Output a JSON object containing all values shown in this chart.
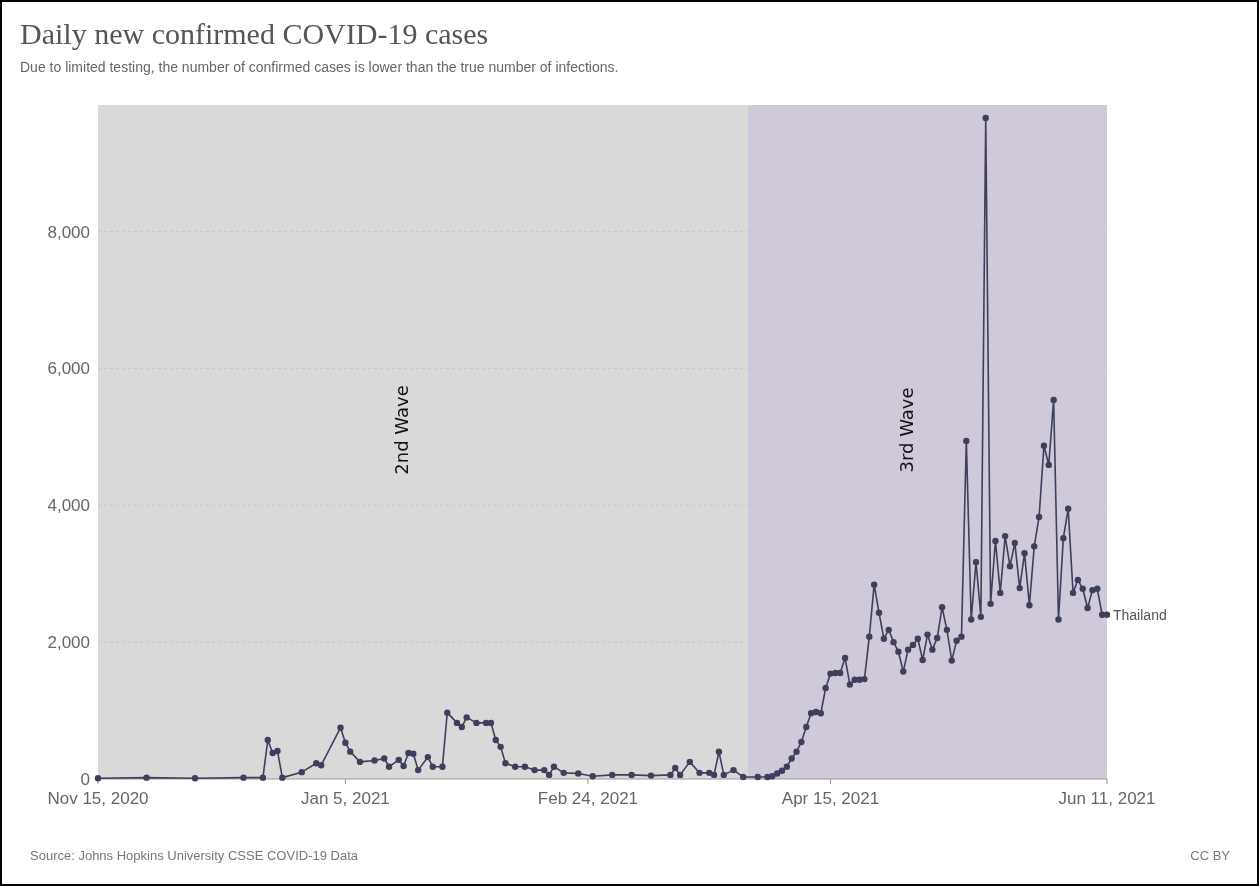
{
  "chart_data": {
    "type": "line",
    "title": "Daily new confirmed COVID-19 cases",
    "subtitle": "Due to limited testing, the number of confirmed cases is lower than the true number of infections.",
    "x": [
      "2020-11-15",
      "2020-11-25",
      "2020-12-05",
      "2020-12-15",
      "2020-12-19",
      "2020-12-20",
      "2020-12-21",
      "2020-12-22",
      "2020-12-23",
      "2020-12-27",
      "2020-12-30",
      "2020-12-31",
      "2021-01-04",
      "2021-01-05",
      "2021-01-06",
      "2021-01-08",
      "2021-01-11",
      "2021-01-13",
      "2021-01-14",
      "2021-01-16",
      "2021-01-17",
      "2021-01-18",
      "2021-01-19",
      "2021-01-20",
      "2021-01-22",
      "2021-01-23",
      "2021-01-25",
      "2021-01-26",
      "2021-01-28",
      "2021-01-29",
      "2021-01-30",
      "2021-02-01",
      "2021-02-03",
      "2021-02-04",
      "2021-02-05",
      "2021-02-06",
      "2021-02-07",
      "2021-02-09",
      "2021-02-11",
      "2021-02-13",
      "2021-02-15",
      "2021-02-16",
      "2021-02-17",
      "2021-02-19",
      "2021-02-22",
      "2021-02-25",
      "2021-03-01",
      "2021-03-05",
      "2021-03-09",
      "2021-03-13",
      "2021-03-14",
      "2021-03-15",
      "2021-03-17",
      "2021-03-19",
      "2021-03-21",
      "2021-03-22",
      "2021-03-23",
      "2021-03-24",
      "2021-03-26",
      "2021-03-28",
      "2021-03-31",
      "2021-04-02",
      "2021-04-03",
      "2021-04-04",
      "2021-04-05",
      "2021-04-06",
      "2021-04-07",
      "2021-04-08",
      "2021-04-09",
      "2021-04-10",
      "2021-04-11",
      "2021-04-12",
      "2021-04-13",
      "2021-04-14",
      "2021-04-15",
      "2021-04-16",
      "2021-04-17",
      "2021-04-18",
      "2021-04-19",
      "2021-04-20",
      "2021-04-21",
      "2021-04-22",
      "2021-04-23",
      "2021-04-24",
      "2021-04-25",
      "2021-04-26",
      "2021-04-27",
      "2021-04-28",
      "2021-04-29",
      "2021-04-30",
      "2021-05-01",
      "2021-05-02",
      "2021-05-03",
      "2021-05-04",
      "2021-05-05",
      "2021-05-06",
      "2021-05-07",
      "2021-05-08",
      "2021-05-09",
      "2021-05-10",
      "2021-05-11",
      "2021-05-12",
      "2021-05-13",
      "2021-05-14",
      "2021-05-15",
      "2021-05-16",
      "2021-05-17",
      "2021-05-18",
      "2021-05-19",
      "2021-05-20",
      "2021-05-21",
      "2021-05-22",
      "2021-05-23",
      "2021-05-24",
      "2021-05-25",
      "2021-05-26",
      "2021-05-27",
      "2021-05-28",
      "2021-05-29",
      "2021-05-30",
      "2021-05-31",
      "2021-06-01",
      "2021-06-02",
      "2021-06-03",
      "2021-06-04",
      "2021-06-05",
      "2021-06-06",
      "2021-06-07",
      "2021-06-08",
      "2021-06-09",
      "2021-06-10",
      "2021-06-11"
    ],
    "series": [
      {
        "name": "Thailand",
        "color": "#3d3f5c",
        "values": [
          10,
          20,
          10,
          20,
          20,
          570,
          380,
          410,
          20,
          100,
          230,
          200,
          750,
          530,
          400,
          250,
          270,
          300,
          180,
          280,
          190,
          380,
          370,
          130,
          320,
          180,
          180,
          970,
          820,
          760,
          900,
          820,
          820,
          820,
          570,
          470,
          230,
          180,
          180,
          130,
          130,
          60,
          180,
          90,
          80,
          40,
          60,
          60,
          50,
          60,
          160,
          60,
          250,
          90,
          90,
          60,
          400,
          60,
          130,
          30,
          30,
          30,
          40,
          80,
          120,
          180,
          300,
          400,
          540,
          760,
          960,
          980,
          960,
          1330,
          1540,
          1550,
          1550,
          1770,
          1380,
          1450,
          1450,
          1460,
          2080,
          2840,
          2430,
          2050,
          2180,
          2000,
          1860,
          1570,
          1890,
          1960,
          2050,
          1740,
          2110,
          1890,
          2060,
          2510,
          2180,
          1730,
          2020,
          2080,
          4940,
          2330,
          3170,
          2370,
          9660,
          2560,
          3480,
          2720,
          3550,
          3110,
          3450,
          2790,
          3300,
          2540,
          3400,
          3830,
          4870,
          4590,
          5540,
          2330,
          3520,
          3950,
          2720,
          2910,
          2780,
          2500,
          2760,
          2780,
          2400,
          2400
        ]
      }
    ],
    "xlim": [
      "2020-11-15",
      "2021-06-11"
    ],
    "xticks": [
      {
        "value": "2020-11-15",
        "label": "Nov 15, 2020"
      },
      {
        "value": "2021-01-05",
        "label": "Jan 5, 2021"
      },
      {
        "value": "2021-02-24",
        "label": "Feb 24, 2021"
      },
      {
        "value": "2021-04-15",
        "label": "Apr 15, 2021"
      },
      {
        "value": "2021-06-11",
        "label": "Jun 11, 2021"
      }
    ],
    "ylim": [
      0,
      9850
    ],
    "yticks": [
      0,
      {
        "value": 2000,
        "label": "2,000"
      },
      {
        "value": 4000,
        "label": "4,000"
      },
      {
        "value": 6000,
        "label": "6,000"
      },
      {
        "value": 8000,
        "label": "8,000"
      }
    ],
    "grid": "y",
    "marker": "circle",
    "line_style": "solid",
    "bands": [
      {
        "axis": "x",
        "from": "2020-11-15",
        "to": "2021-03-29",
        "label": "2nd Wave",
        "color": "#d9d9d9"
      },
      {
        "axis": "x",
        "from": "2021-03-29",
        "to": "2021-06-11",
        "label": "3rd Wave",
        "color": "#cfc9da"
      }
    ],
    "annotations": [
      "Source: Johns Hopkins University CSSE COVID-19 Data",
      "CC BY"
    ]
  }
}
